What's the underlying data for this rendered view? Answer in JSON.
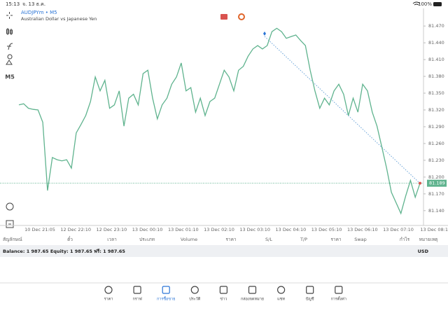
{
  "status_bar": {
    "time": "15:13",
    "date": "จ. 13 ธ.ค.",
    "battery": "100%"
  },
  "chart": {
    "type": "line",
    "symbol": "AUDJPYm • M5",
    "description": "Australian Dollar vs Japanese Yen",
    "timeframe": "M5",
    "color": "#5fb38e",
    "values": [
      81.329,
      81.331,
      81.323,
      81.321,
      81.32,
      81.298,
      81.176,
      81.235,
      81.231,
      81.229,
      81.231,
      81.216,
      81.279,
      81.294,
      81.31,
      81.335,
      81.379,
      81.354,
      81.373,
      81.323,
      81.329,
      81.354,
      81.291,
      81.341,
      81.348,
      81.329,
      81.385,
      81.391,
      81.341,
      81.304,
      81.329,
      81.341,
      81.366,
      81.379,
      81.404,
      81.354,
      81.36,
      81.316,
      81.341,
      81.31,
      81.335,
      81.341,
      81.366,
      81.391,
      81.379,
      81.354,
      81.391,
      81.398,
      81.416,
      81.429,
      81.435,
      81.429,
      81.435,
      81.46,
      81.466,
      81.46,
      81.448,
      81.451,
      81.454,
      81.444,
      81.435,
      81.391,
      81.354,
      81.323,
      81.341,
      81.329,
      81.354,
      81.366,
      81.348,
      81.31,
      81.341,
      81.316,
      81.366,
      81.354,
      81.316,
      81.291,
      81.254,
      81.216,
      81.173,
      81.154,
      81.135,
      81.166,
      81.194,
      81.164,
      81.189
    ],
    "ylim": [
      81.116,
      81.499
    ],
    "yticks": [
      {
        "value": 81.47,
        "label": "81.470"
      },
      {
        "value": 81.44,
        "label": "81.440"
      },
      {
        "value": 81.41,
        "label": "81.410"
      },
      {
        "value": 81.38,
        "label": "81.380"
      },
      {
        "value": 81.35,
        "label": "81.350"
      },
      {
        "value": 81.32,
        "label": "81.320"
      },
      {
        "value": 81.29,
        "label": "81.290"
      },
      {
        "value": 81.26,
        "label": "81.260"
      },
      {
        "value": 81.23,
        "label": "81.230"
      },
      {
        "value": 81.2,
        "label": "81.200"
      },
      {
        "value": 81.17,
        "label": "81.170"
      },
      {
        "value": 81.14,
        "label": "81.140"
      }
    ],
    "xtick_labels": [
      "10 Dec 21:05",
      "12 Dec 22:10",
      "12 Dec 23:10",
      "13 Dec 00:10",
      "13 Dec 01:10",
      "13 Dec 02:10",
      "13 Dec 03:10",
      "13 Dec 04:10",
      "13 Dec 05:10",
      "13 Dec 06:10",
      "13 Dec 07:10",
      "13 Dec 08:1"
    ],
    "current_price": 81.189
  },
  "table_header": [
    "สัญลักษณ์",
    "ตั๋ว",
    "เวลา",
    "ประเภท",
    "Volume",
    "ราคา",
    "S/L",
    "T/P",
    "ราคา",
    "Swap",
    "กำไร",
    "หมายเหตุ"
  ],
  "balance": {
    "text": "Balance: 1 987.65 Equity: 1 987.65 ฟรี: 1 987.65",
    "currency": "USD"
  },
  "nav": {
    "items": [
      "ราคา",
      "กราฟ",
      "การซื้อขาย",
      "ประวัติ",
      "ข่าว",
      "กล่องจดหมาย",
      "แชท",
      "บัญชี",
      "การตั้งค่า"
    ],
    "active": 2
  }
}
